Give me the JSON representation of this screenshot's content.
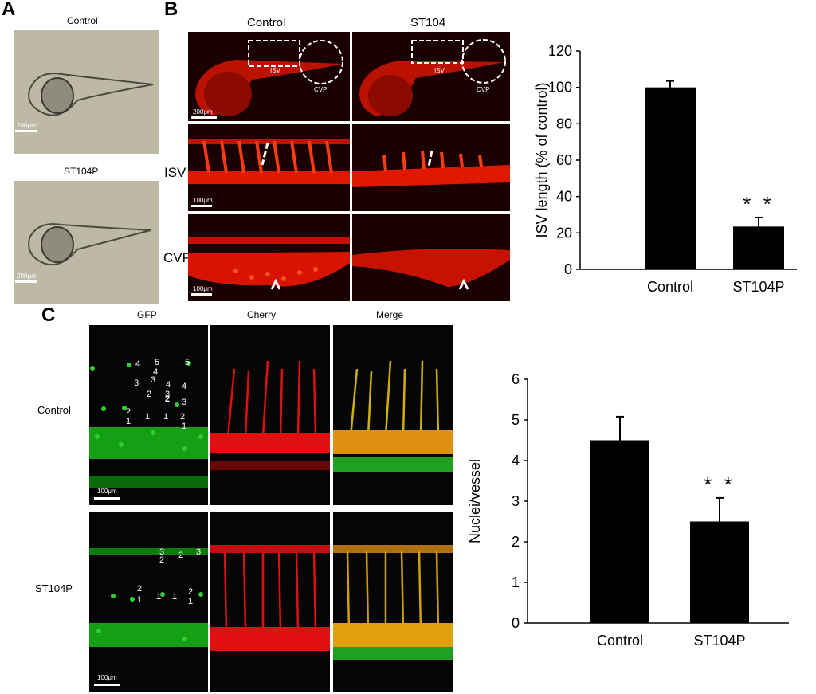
{
  "panel_a": {
    "label": "A",
    "top_title": "Control",
    "bottom_title": "ST104P",
    "scale_top": "200μm",
    "scale_bottom": "200μm"
  },
  "panel_b": {
    "label": "B",
    "col1_title": "Control",
    "col2_title": "ST104",
    "row_isv": "ISV",
    "row_cvp": "CVP",
    "isv_box_label": "ISV",
    "cvp_circle_label": "CVP",
    "scale_top": "200μm",
    "scale_mid": "100μm",
    "scale_bottom": "100μm"
  },
  "panel_c": {
    "label": "C",
    "col_gfp": "GFP",
    "col_cherry": "Cherry",
    "col_merge": "Merge",
    "row_control": "Control",
    "row_st104p": "ST104P",
    "scale_top": "100μm",
    "scale_bottom": "100μm",
    "control_nuclei_numbers": [
      "4",
      "5",
      "4",
      "5",
      "3",
      "3",
      "4",
      "3",
      "2",
      "4",
      "2",
      "3",
      "2",
      "1",
      "1",
      "2",
      "1",
      "1"
    ],
    "st104p_nuclei_numbers": [
      "3",
      "2",
      "2",
      "3",
      "2",
      "1",
      "1",
      "1",
      "2",
      "1"
    ]
  },
  "chart_data": [
    {
      "type": "bar",
      "categories": [
        "Control",
        "ST104P"
      ],
      "values": [
        100,
        23.5
      ],
      "errors": [
        3.5,
        5
      ],
      "significance": [
        "",
        "**"
      ],
      "ylabel": "ISV length (% of control)",
      "ylim": [
        0,
        120
      ],
      "yticks": [
        "0",
        "20",
        "40",
        "60",
        "80",
        "100",
        "120"
      ],
      "colors": [
        "#000000",
        "#000000"
      ]
    },
    {
      "type": "bar",
      "categories": [
        "Control",
        "ST104P"
      ],
      "values": [
        4.5,
        2.5
      ],
      "errors": [
        0.58,
        0.58
      ],
      "significance": [
        "",
        "**"
      ],
      "ylabel": "Nuclei/vessel",
      "ylim": [
        0,
        6
      ],
      "yticks": [
        "0",
        "1",
        "2",
        "3",
        "4",
        "5",
        "6"
      ],
      "colors": [
        "#000000",
        "#000000"
      ]
    }
  ]
}
